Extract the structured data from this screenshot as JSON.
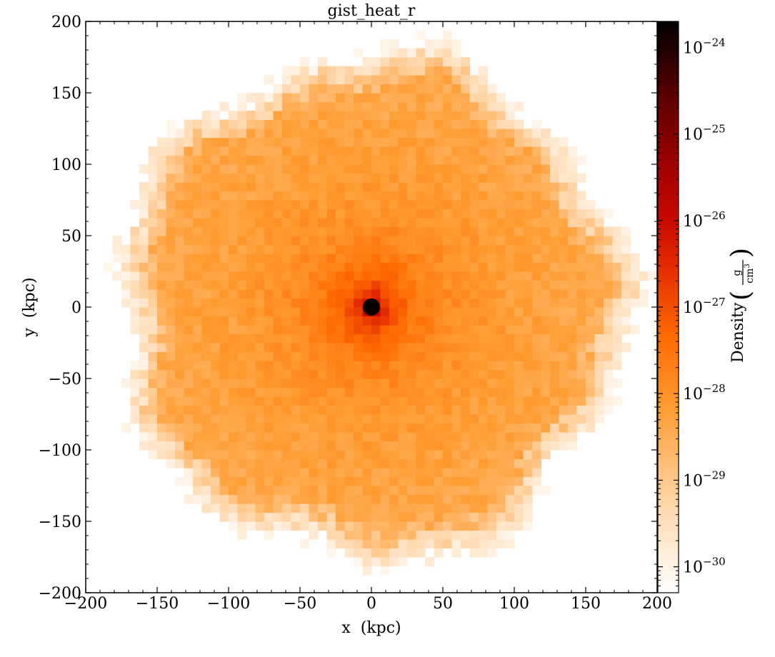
{
  "chart_data": {
    "type": "heatmap",
    "title": "gist_heat_r",
    "xlabel": "x  (kpc)",
    "ylabel": "y  (kpc)",
    "xlim": [
      -200,
      200
    ],
    "ylim": [
      -200,
      200
    ],
    "xticks": [
      -200,
      -150,
      -100,
      -50,
      0,
      50,
      100,
      150,
      200
    ],
    "yticks": [
      -200,
      -150,
      -100,
      -50,
      0,
      50,
      100,
      150,
      200
    ],
    "xtick_labels": [
      "−200",
      "−150",
      "−100",
      "−50",
      "0",
      "50",
      "100",
      "150",
      "200"
    ],
    "ytick_labels": [
      "−200",
      "−150",
      "−100",
      "−50",
      "0",
      "50",
      "100",
      "150",
      "200"
    ],
    "colormap": "gist_heat_r",
    "field": {
      "center": [
        0,
        0
      ],
      "outer_radius_kpc": 175,
      "core_radius_kpc": 4,
      "grid_resolution_kpc": 6.25
    },
    "colorbar": {
      "label": "Density",
      "unit_numerator": "g",
      "unit_denominator": "cm",
      "unit_denominator_power": "3",
      "scale": "log",
      "range_log10": [
        -30.3,
        -23.7
      ],
      "ticks_log10": [
        -24,
        -25,
        -26,
        -27,
        -28,
        -29,
        -30
      ],
      "tick_labels": [
        {
          "base": "10",
          "exp": "−24"
        },
        {
          "base": "10",
          "exp": "−25"
        },
        {
          "base": "10",
          "exp": "−26"
        },
        {
          "base": "10",
          "exp": "−27"
        },
        {
          "base": "10",
          "exp": "−28"
        },
        {
          "base": "10",
          "exp": "−29"
        },
        {
          "base": "10",
          "exp": "−30"
        }
      ]
    }
  }
}
